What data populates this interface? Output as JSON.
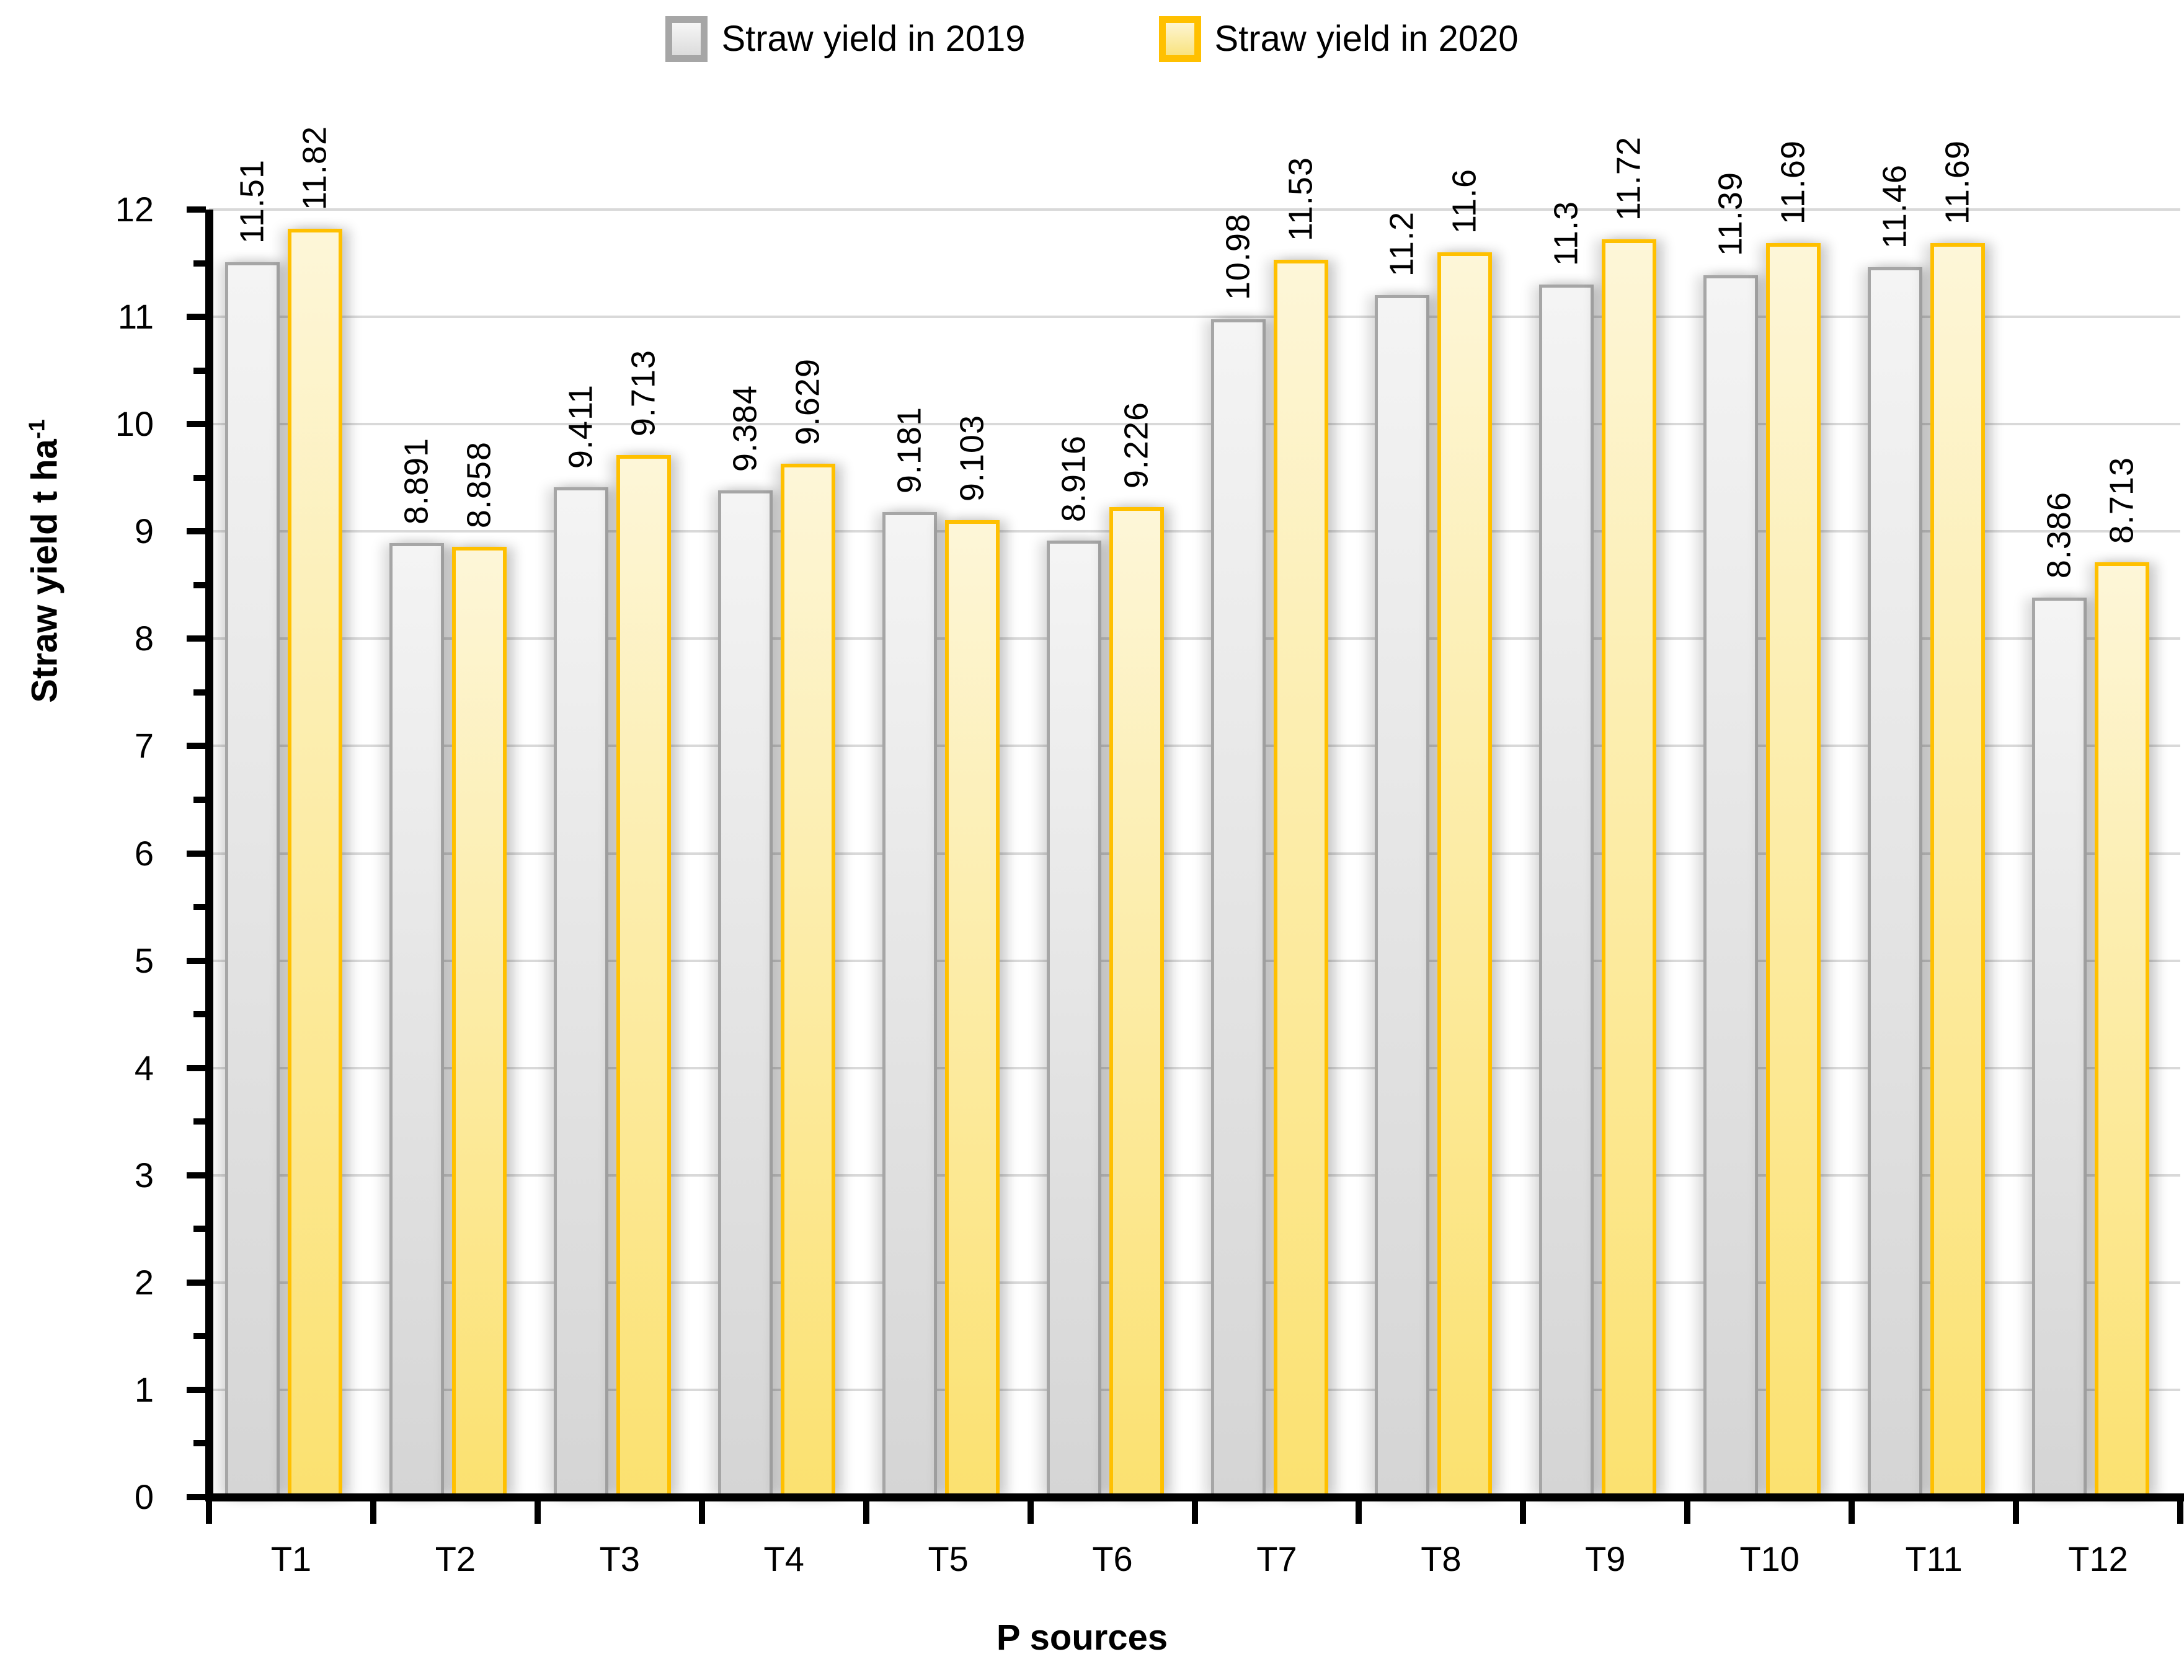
{
  "legend": {
    "items": [
      {
        "label": "Straw yield in 2019",
        "fill_top": "#f6f6f6",
        "fill_bottom": "#dcdcdc",
        "border": "#a6a6a6"
      },
      {
        "label": "Straw yield in 2020",
        "fill_top": "#fdf5d3",
        "fill_bottom": "#f9e37e",
        "border": "#ffc000"
      }
    ]
  },
  "axes": {
    "y": {
      "title_main": "Straw yield t ha",
      "title_sup": "-1",
      "min": 0,
      "max": 12,
      "major_step": 1,
      "minor_step": 0.5,
      "tick_labels": [
        "0",
        "1",
        "2",
        "3",
        "4",
        "5",
        "6",
        "7",
        "8",
        "9",
        "10",
        "11",
        "12"
      ]
    },
    "x": {
      "title": "P sources"
    }
  },
  "chart_data": {
    "type": "bar",
    "title": "",
    "xlabel": "P sources",
    "ylabel": "Straw yield t ha-1",
    "ylim": [
      0,
      12
    ],
    "gridlines": "horizontal-major",
    "legend_position": "top-center",
    "categories": [
      "T1",
      "T2",
      "T3",
      "T4",
      "T5",
      "T6",
      "T7",
      "T8",
      "T9",
      "T10",
      "T11",
      "T12"
    ],
    "series": [
      {
        "name": "Straw yield in 2019",
        "values": [
          11.51,
          8.891,
          9.411,
          9.384,
          9.181,
          8.916,
          10.98,
          11.2,
          11.3,
          11.39,
          11.46,
          8.386
        ],
        "labels": [
          "11.51",
          "8.891",
          "9.411",
          "9.384",
          "9.181",
          "8.916",
          "10.98",
          "11.2",
          "11.3",
          "11.39",
          "11.46",
          "8.386"
        ],
        "fill_top": "#f4f4f4",
        "fill_bottom": "#d5d5d5",
        "border": "#a6a6a6",
        "border_width": 5
      },
      {
        "name": "Straw yield in 2020",
        "values": [
          11.82,
          8.858,
          9.713,
          9.629,
          9.103,
          9.226,
          11.53,
          11.6,
          11.72,
          11.69,
          11.69,
          8.713
        ],
        "labels": [
          "11.82",
          "8.858",
          "9.713",
          "9.629",
          "9.103",
          "9.226",
          "11.53",
          "11.6",
          "11.72",
          "11.69",
          "11.69",
          "8.713"
        ],
        "fill_top": "#fdf6d8",
        "fill_bottom": "#fbe170",
        "border": "#ffc000",
        "border_width": 6
      }
    ]
  },
  "colors": {
    "gridline": "#d9d9d9",
    "axis": "#000000",
    "text": "#000000",
    "background": "#ffffff"
  }
}
